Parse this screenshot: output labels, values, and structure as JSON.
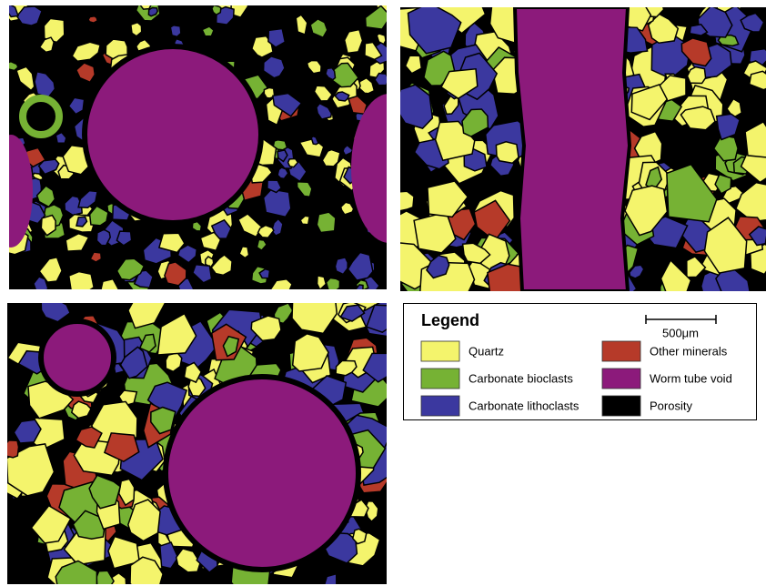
{
  "legend": {
    "title": "Legend",
    "scale_bar": "500μm",
    "items": [
      {
        "label": "Quartz",
        "color": "#f4f46c"
      },
      {
        "label": "Carbonate bioclasts",
        "color": "#76b234"
      },
      {
        "label": "Carbonate lithoclasts",
        "color": "#3b389f"
      },
      {
        "label": "Other minerals",
        "color": "#b63a29"
      },
      {
        "label": "Worm tube void",
        "color": "#8c1a7b"
      },
      {
        "label": "Porosity",
        "color": "#000000"
      }
    ]
  }
}
